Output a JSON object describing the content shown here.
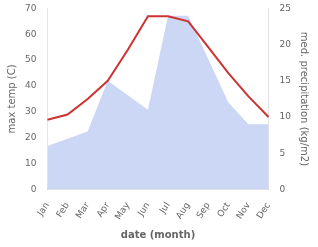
{
  "chart_data": {
    "type": "line",
    "categories": [
      "Jan",
      "Feb",
      "Mar",
      "Apr",
      "May",
      "Jun",
      "Jul",
      "Aug",
      "Sep",
      "Oct",
      "Nov",
      "Dec"
    ],
    "xlabel": "date (month)",
    "ylabel": "max temp (C)",
    "y2label": "med. precipitation (kg/m2)",
    "ylim": [
      0,
      70
    ],
    "yticks": [
      0,
      10,
      20,
      30,
      40,
      50,
      60,
      70
    ],
    "y2lim": [
      0,
      25
    ],
    "y2ticks": [
      0,
      5,
      10,
      15,
      20,
      25
    ],
    "grid": false,
    "series": [
      {
        "type": "area",
        "color": "#aabbee",
        "axis": "y2",
        "values": [
          6,
          7,
          8,
          15,
          13,
          11,
          24,
          24,
          18,
          12,
          9,
          9
        ]
      },
      {
        "type": "line",
        "color": "#cc3333",
        "values": [
          27,
          29,
          35,
          42,
          54,
          67,
          67,
          65,
          55,
          45,
          36,
          28
        ]
      }
    ]
  }
}
